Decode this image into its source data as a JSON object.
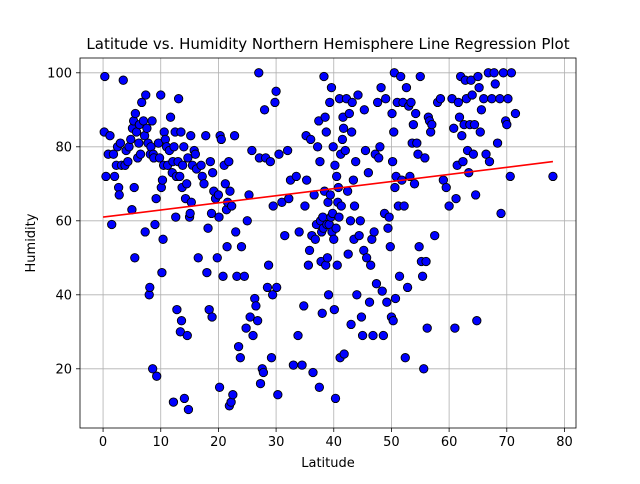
{
  "chart_data": {
    "type": "scatter",
    "title": "Latitude vs. Humidity Northern Hemisphere Line Regression Plot",
    "xlabel": "Latitude",
    "ylabel": "Humidity",
    "xlim": [
      -4,
      82
    ],
    "ylim": [
      4,
      104
    ],
    "xticks": [
      0,
      10,
      20,
      30,
      40,
      50,
      60,
      70,
      80
    ],
    "yticks": [
      20,
      40,
      60,
      80,
      100
    ],
    "grid": true,
    "marker_color": "#0000ff",
    "marker_edge_color": "#000000",
    "line_color": "#ff0000",
    "regression_line": {
      "x": [
        0,
        78
      ],
      "y": [
        61,
        76
      ]
    },
    "points": [
      [
        0.2,
        84
      ],
      [
        0.3,
        99
      ],
      [
        0.5,
        72
      ],
      [
        0.9,
        78
      ],
      [
        1.2,
        83
      ],
      [
        1.5,
        59
      ],
      [
        1.8,
        78
      ],
      [
        2.0,
        72
      ],
      [
        2.3,
        75
      ],
      [
        2.5,
        80
      ],
      [
        2.7,
        69
      ],
      [
        2.8,
        67
      ],
      [
        3.0,
        81
      ],
      [
        3.2,
        75
      ],
      [
        3.5,
        98
      ],
      [
        3.8,
        75
      ],
      [
        4.0,
        79
      ],
      [
        4.3,
        76
      ],
      [
        4.5,
        80
      ],
      [
        4.8,
        82
      ],
      [
        5.0,
        63
      ],
      [
        5.1,
        85
      ],
      [
        5.3,
        87
      ],
      [
        5.4,
        69
      ],
      [
        5.5,
        50
      ],
      [
        5.6,
        89
      ],
      [
        5.8,
        84
      ],
      [
        6.0,
        77
      ],
      [
        6.2,
        81
      ],
      [
        6.3,
        86
      ],
      [
        6.5,
        78
      ],
      [
        6.7,
        92
      ],
      [
        7.0,
        87
      ],
      [
        7.2,
        83
      ],
      [
        7.3,
        57
      ],
      [
        7.4,
        94
      ],
      [
        7.6,
        85
      ],
      [
        7.8,
        81
      ],
      [
        8.0,
        40
      ],
      [
        8.1,
        42
      ],
      [
        8.2,
        78
      ],
      [
        8.3,
        80
      ],
      [
        8.5,
        87
      ],
      [
        8.6,
        20
      ],
      [
        8.7,
        78
      ],
      [
        8.8,
        77
      ],
      [
        9.0,
        59
      ],
      [
        9.2,
        66
      ],
      [
        9.3,
        18
      ],
      [
        9.6,
        81
      ],
      [
        9.8,
        77
      ],
      [
        10.0,
        94
      ],
      [
        10.1,
        69
      ],
      [
        10.2,
        46
      ],
      [
        10.3,
        71
      ],
      [
        10.4,
        55
      ],
      [
        10.5,
        75
      ],
      [
        10.6,
        84
      ],
      [
        10.8,
        82
      ],
      [
        11.0,
        80
      ],
      [
        11.2,
        75
      ],
      [
        11.5,
        79
      ],
      [
        11.7,
        88
      ],
      [
        12.0,
        73
      ],
      [
        12.1,
        76
      ],
      [
        12.2,
        11
      ],
      [
        12.3,
        80
      ],
      [
        12.5,
        84
      ],
      [
        12.6,
        61
      ],
      [
        12.7,
        72
      ],
      [
        12.8,
        36
      ],
      [
        13.0,
        76
      ],
      [
        13.1,
        93
      ],
      [
        13.3,
        72
      ],
      [
        13.4,
        30
      ],
      [
        13.5,
        84
      ],
      [
        13.6,
        33
      ],
      [
        13.7,
        69
      ],
      [
        13.8,
        75
      ],
      [
        14.0,
        80
      ],
      [
        14.1,
        12
      ],
      [
        14.3,
        66
      ],
      [
        14.5,
        70
      ],
      [
        14.6,
        29
      ],
      [
        14.7,
        77
      ],
      [
        14.8,
        9
      ],
      [
        15.0,
        61
      ],
      [
        15.1,
        62
      ],
      [
        15.2,
        83
      ],
      [
        15.3,
        65
      ],
      [
        15.5,
        75
      ],
      [
        15.8,
        79
      ],
      [
        16.0,
        78
      ],
      [
        16.2,
        74
      ],
      [
        16.5,
        50
      ],
      [
        17.0,
        75
      ],
      [
        17.2,
        72
      ],
      [
        17.5,
        70
      ],
      [
        17.8,
        83
      ],
      [
        18.0,
        46
      ],
      [
        18.2,
        58
      ],
      [
        18.4,
        36
      ],
      [
        18.6,
        76
      ],
      [
        18.8,
        62
      ],
      [
        18.9,
        34
      ],
      [
        19.0,
        73
      ],
      [
        19.2,
        68
      ],
      [
        19.5,
        66
      ],
      [
        19.8,
        50
      ],
      [
        20.0,
        67
      ],
      [
        20.1,
        61
      ],
      [
        20.2,
        15
      ],
      [
        20.3,
        83
      ],
      [
        20.5,
        82
      ],
      [
        20.8,
        45
      ],
      [
        21.0,
        75
      ],
      [
        21.2,
        70
      ],
      [
        21.4,
        63
      ],
      [
        21.5,
        53
      ],
      [
        21.6,
        65
      ],
      [
        21.8,
        76
      ],
      [
        21.9,
        10
      ],
      [
        22.0,
        68
      ],
      [
        22.2,
        11
      ],
      [
        22.3,
        64
      ],
      [
        22.5,
        13
      ],
      [
        22.8,
        83
      ],
      [
        23.0,
        57
      ],
      [
        23.2,
        45
      ],
      [
        23.5,
        26
      ],
      [
        23.8,
        23
      ],
      [
        24.0,
        53
      ],
      [
        24.5,
        45
      ],
      [
        24.8,
        31
      ],
      [
        25.0,
        60
      ],
      [
        25.3,
        67
      ],
      [
        25.5,
        34
      ],
      [
        25.8,
        79
      ],
      [
        26.0,
        29
      ],
      [
        26.3,
        39
      ],
      [
        26.5,
        37
      ],
      [
        26.8,
        33
      ],
      [
        27.0,
        100
      ],
      [
        27.1,
        77
      ],
      [
        27.3,
        16
      ],
      [
        27.6,
        20
      ],
      [
        27.8,
        19
      ],
      [
        28.0,
        90
      ],
      [
        28.2,
        77
      ],
      [
        28.5,
        42
      ],
      [
        28.7,
        48
      ],
      [
        29.0,
        76
      ],
      [
        29.2,
        23
      ],
      [
        29.4,
        40
      ],
      [
        29.5,
        64
      ],
      [
        29.8,
        92
      ],
      [
        30.0,
        95
      ],
      [
        30.1,
        42
      ],
      [
        30.3,
        13
      ],
      [
        30.5,
        78
      ],
      [
        31.0,
        65
      ],
      [
        31.5,
        56
      ],
      [
        32.0,
        79
      ],
      [
        32.2,
        66
      ],
      [
        32.5,
        71
      ],
      [
        33.0,
        21
      ],
      [
        33.5,
        72
      ],
      [
        33.8,
        29
      ],
      [
        34.0,
        57
      ],
      [
        34.5,
        21
      ],
      [
        34.8,
        37
      ],
      [
        35.0,
        64
      ],
      [
        35.2,
        83
      ],
      [
        35.3,
        71
      ],
      [
        35.6,
        48
      ],
      [
        35.8,
        52
      ],
      [
        36.0,
        82
      ],
      [
        36.2,
        56
      ],
      [
        36.4,
        19
      ],
      [
        36.6,
        67
      ],
      [
        36.8,
        55
      ],
      [
        37.0,
        59
      ],
      [
        37.2,
        80
      ],
      [
        37.4,
        87
      ],
      [
        37.5,
        15
      ],
      [
        37.6,
        76
      ],
      [
        37.7,
        60
      ],
      [
        37.8,
        49
      ],
      [
        37.9,
        57
      ],
      [
        38.0,
        35
      ],
      [
        38.1,
        61
      ],
      [
        38.2,
        58
      ],
      [
        38.3,
        99
      ],
      [
        38.4,
        68
      ],
      [
        38.5,
        88
      ],
      [
        38.6,
        48
      ],
      [
        38.7,
        84
      ],
      [
        38.8,
        59
      ],
      [
        38.9,
        50
      ],
      [
        39.0,
        65
      ],
      [
        39.1,
        40
      ],
      [
        39.2,
        59
      ],
      [
        39.3,
        92
      ],
      [
        39.4,
        67
      ],
      [
        39.5,
        61
      ],
      [
        39.6,
        96
      ],
      [
        39.7,
        57
      ],
      [
        39.8,
        62
      ],
      [
        39.9,
        80
      ],
      [
        40.0,
        55
      ],
      [
        40.1,
        36
      ],
      [
        40.2,
        75
      ],
      [
        40.3,
        12
      ],
      [
        40.4,
        58
      ],
      [
        40.5,
        72
      ],
      [
        40.6,
        48
      ],
      [
        40.7,
        65
      ],
      [
        40.8,
        69
      ],
      [
        40.9,
        61
      ],
      [
        41.0,
        93
      ],
      [
        41.1,
        23
      ],
      [
        41.2,
        78
      ],
      [
        41.3,
        64
      ],
      [
        41.5,
        82
      ],
      [
        41.6,
        88
      ],
      [
        41.7,
        85
      ],
      [
        41.8,
        24
      ],
      [
        42.0,
        79
      ],
      [
        42.2,
        93
      ],
      [
        42.4,
        68
      ],
      [
        42.5,
        51
      ],
      [
        42.7,
        89
      ],
      [
        42.9,
        60
      ],
      [
        43.0,
        32
      ],
      [
        43.1,
        84
      ],
      [
        43.2,
        92
      ],
      [
        43.4,
        71
      ],
      [
        43.5,
        55
      ],
      [
        43.6,
        64
      ],
      [
        43.8,
        76
      ],
      [
        44.0,
        40
      ],
      [
        44.2,
        94
      ],
      [
        44.4,
        56
      ],
      [
        44.6,
        60
      ],
      [
        44.8,
        34
      ],
      [
        45.0,
        29
      ],
      [
        45.2,
        52
      ],
      [
        45.3,
        90
      ],
      [
        45.5,
        79
      ],
      [
        45.7,
        50
      ],
      [
        46.0,
        73
      ],
      [
        46.2,
        38
      ],
      [
        46.4,
        48
      ],
      [
        46.6,
        55
      ],
      [
        46.8,
        29
      ],
      [
        47.0,
        57
      ],
      [
        47.2,
        78
      ],
      [
        47.4,
        43
      ],
      [
        47.6,
        92
      ],
      [
        47.8,
        77
      ],
      [
        48.0,
        80
      ],
      [
        48.2,
        96
      ],
      [
        48.4,
        41
      ],
      [
        48.6,
        29
      ],
      [
        48.8,
        62
      ],
      [
        49.0,
        93
      ],
      [
        49.2,
        38
      ],
      [
        49.4,
        58
      ],
      [
        49.6,
        61
      ],
      [
        49.8,
        53
      ],
      [
        50.0,
        34
      ],
      [
        50.1,
        89
      ],
      [
        50.2,
        76
      ],
      [
        50.3,
        33
      ],
      [
        50.4,
        84
      ],
      [
        50.5,
        100
      ],
      [
        50.6,
        69
      ],
      [
        50.7,
        39
      ],
      [
        50.8,
        72
      ],
      [
        51.0,
        92
      ],
      [
        51.2,
        64
      ],
      [
        51.4,
        45
      ],
      [
        51.6,
        99
      ],
      [
        51.8,
        71
      ],
      [
        52.0,
        92
      ],
      [
        52.2,
        64
      ],
      [
        52.4,
        23
      ],
      [
        52.6,
        96
      ],
      [
        52.8,
        42
      ],
      [
        53.0,
        91
      ],
      [
        53.2,
        72
      ],
      [
        53.4,
        92
      ],
      [
        53.6,
        81
      ],
      [
        53.8,
        86
      ],
      [
        54.0,
        70
      ],
      [
        54.2,
        89
      ],
      [
        54.4,
        81
      ],
      [
        54.6,
        78
      ],
      [
        54.8,
        53
      ],
      [
        55.0,
        99
      ],
      [
        55.2,
        49
      ],
      [
        55.4,
        45
      ],
      [
        55.6,
        20
      ],
      [
        55.8,
        77
      ],
      [
        56.0,
        49
      ],
      [
        56.2,
        31
      ],
      [
        56.4,
        88
      ],
      [
        56.6,
        87
      ],
      [
        56.8,
        84
      ],
      [
        57.0,
        86
      ],
      [
        57.5,
        56
      ],
      [
        58.0,
        92
      ],
      [
        58.5,
        93
      ],
      [
        59.0,
        71
      ],
      [
        59.5,
        69
      ],
      [
        60.0,
        64
      ],
      [
        60.5,
        93
      ],
      [
        60.8,
        85
      ],
      [
        61.0,
        31
      ],
      [
        61.2,
        66
      ],
      [
        61.4,
        75
      ],
      [
        61.6,
        92
      ],
      [
        61.8,
        88
      ],
      [
        62.0,
        99
      ],
      [
        62.2,
        83
      ],
      [
        62.4,
        76
      ],
      [
        62.6,
        86
      ],
      [
        62.8,
        98
      ],
      [
        63.0,
        93
      ],
      [
        63.2,
        79
      ],
      [
        63.4,
        73
      ],
      [
        63.6,
        86
      ],
      [
        63.8,
        98
      ],
      [
        64.0,
        94
      ],
      [
        64.2,
        78
      ],
      [
        64.4,
        86
      ],
      [
        64.6,
        67
      ],
      [
        64.8,
        33
      ],
      [
        65.0,
        99
      ],
      [
        65.2,
        96
      ],
      [
        65.4,
        84
      ],
      [
        65.6,
        90
      ],
      [
        66.0,
        93
      ],
      [
        66.4,
        78
      ],
      [
        66.8,
        100
      ],
      [
        67.0,
        76
      ],
      [
        67.4,
        93
      ],
      [
        67.8,
        100
      ],
      [
        68.0,
        97
      ],
      [
        68.4,
        81
      ],
      [
        68.8,
        93
      ],
      [
        69.0,
        62
      ],
      [
        69.4,
        100
      ],
      [
        69.8,
        87
      ],
      [
        70.0,
        86
      ],
      [
        70.2,
        93
      ],
      [
        70.6,
        72
      ],
      [
        70.8,
        100
      ],
      [
        71.5,
        89
      ],
      [
        78.0,
        72
      ]
    ]
  }
}
